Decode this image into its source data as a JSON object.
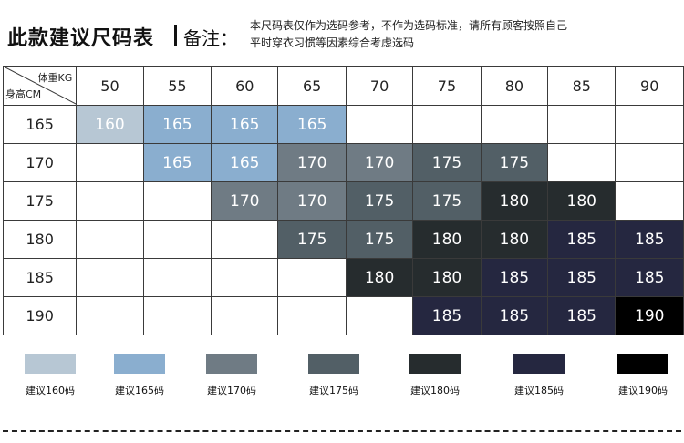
{
  "header": {
    "title": "此款建议尺码表",
    "note_label": "备注：",
    "note_line1": "本尺码表仅作为选码参考，不作为选码标准，请所有顾客按照自己",
    "note_line2": "平时穿衣习惯等因素综合考虑选码"
  },
  "table": {
    "corner_weight_label": "体重KG",
    "corner_height_label": "身高CM",
    "weights": [
      "50",
      "55",
      "60",
      "65",
      "70",
      "75",
      "80",
      "85",
      "90"
    ],
    "rows": [
      {
        "height": "165",
        "cells": [
          "160",
          "165",
          "165",
          "165",
          "",
          "",
          "",
          "",
          ""
        ]
      },
      {
        "height": "170",
        "cells": [
          "",
          "165",
          "165",
          "170",
          "170",
          "175",
          "175",
          "",
          ""
        ]
      },
      {
        "height": "175",
        "cells": [
          "",
          "",
          "170",
          "170",
          "175",
          "175",
          "180",
          "180",
          ""
        ]
      },
      {
        "height": "180",
        "cells": [
          "",
          "",
          "",
          "175",
          "175",
          "180",
          "180",
          "185",
          "185"
        ]
      },
      {
        "height": "185",
        "cells": [
          "",
          "",
          "",
          "",
          "180",
          "180",
          "185",
          "185",
          "185"
        ]
      },
      {
        "height": "190",
        "cells": [
          "",
          "",
          "",
          "",
          "",
          "185",
          "185",
          "185",
          "190"
        ]
      }
    ]
  },
  "size_colors": {
    "160": "#b7c7d4",
    "165": "#8aaecf",
    "170": "#6f7b84",
    "175": "#525f66",
    "180": "#262c2e",
    "185": "#252740",
    "190": "#000000"
  },
  "legend": [
    {
      "size": "160",
      "label": "建议160码"
    },
    {
      "size": "165",
      "label": "建议165码"
    },
    {
      "size": "170",
      "label": "建议170码"
    },
    {
      "size": "175",
      "label": "建议175码"
    },
    {
      "size": "180",
      "label": "建议180码"
    },
    {
      "size": "185",
      "label": "建议185码"
    },
    {
      "size": "190",
      "label": "建议190码"
    }
  ]
}
